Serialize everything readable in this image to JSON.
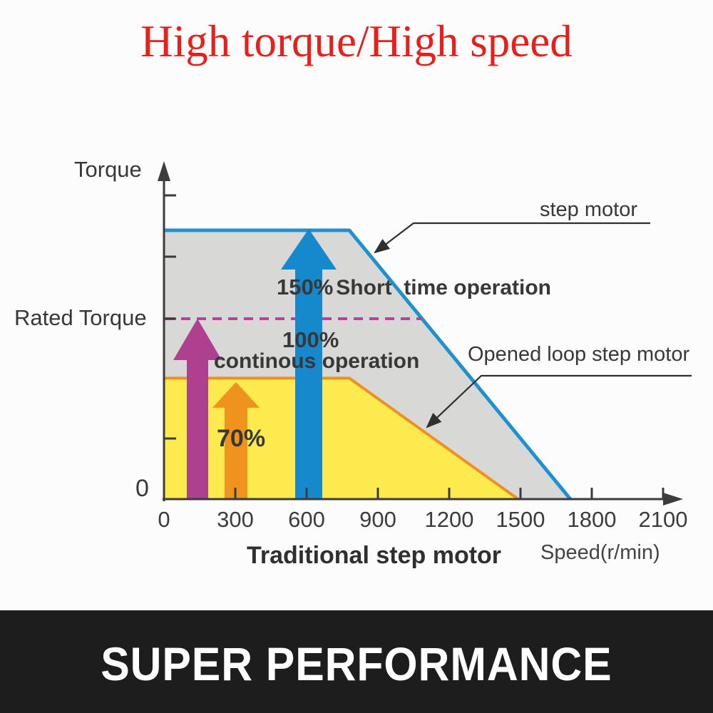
{
  "title": "High torque/High speed",
  "banner": {
    "text": "SUPER PERFORMANCE",
    "bg": "#1d1d1d",
    "fg": "#ffffff"
  },
  "colors": {
    "title_red": "#e8201c",
    "axis": "#3c3c3c",
    "leader_line": "#2f2f2f",
    "banner_bg": "#1d1d1d"
  },
  "chart_data": {
    "type": "area",
    "ylabel": "Torque",
    "xlabel": "Speed(r/min)",
    "x_axis_title": "Traditional step motor",
    "y_zero_label": "0",
    "x_ticks": [
      0,
      300,
      600,
      900,
      1200,
      1500,
      1800,
      2100
    ],
    "xlim": [
      0,
      2175
    ],
    "ylim_pct": [
      0,
      188
    ],
    "grid": false,
    "series": [
      {
        "name": "step motor",
        "line_color": "#1f90d0",
        "fill": "#d8d8d6",
        "points_speed_pct": [
          [
            0,
            150
          ],
          [
            780,
            150
          ],
          [
            1710,
            0
          ]
        ]
      },
      {
        "name": "Opened loop step motor",
        "line_color": "#f0911f",
        "fill": "#fdea4f",
        "points_speed_pct": [
          [
            0,
            67.5
          ],
          [
            780,
            67.5
          ],
          [
            1490,
            0
          ]
        ]
      }
    ],
    "rated_torque_line": {
      "label": "Rated Torque",
      "pct": 100.7,
      "x_end_speed": 1086,
      "color": "#c23e92",
      "style": "dashed"
    },
    "y_ticks_pct": [
      169.5,
      135.3,
      100.7,
      33.8
    ],
    "markers": [
      {
        "name": "rated-torque-arrow",
        "speed": 141,
        "pct": 100.7,
        "color": "#af4090"
      },
      {
        "name": "70-percent-arrow",
        "speed": 303,
        "pct": 65.3,
        "color": "#f0921e"
      },
      {
        "name": "150-percent-arrow",
        "speed": 609,
        "pct": 150.8,
        "color": "#1688cc"
      }
    ],
    "annotations": {
      "pct150": "150%",
      "short_time": "Short  time operation",
      "pct100": "100%",
      "continous": "continous operation",
      "pct70": "70%"
    },
    "legend_position": "callouts"
  }
}
